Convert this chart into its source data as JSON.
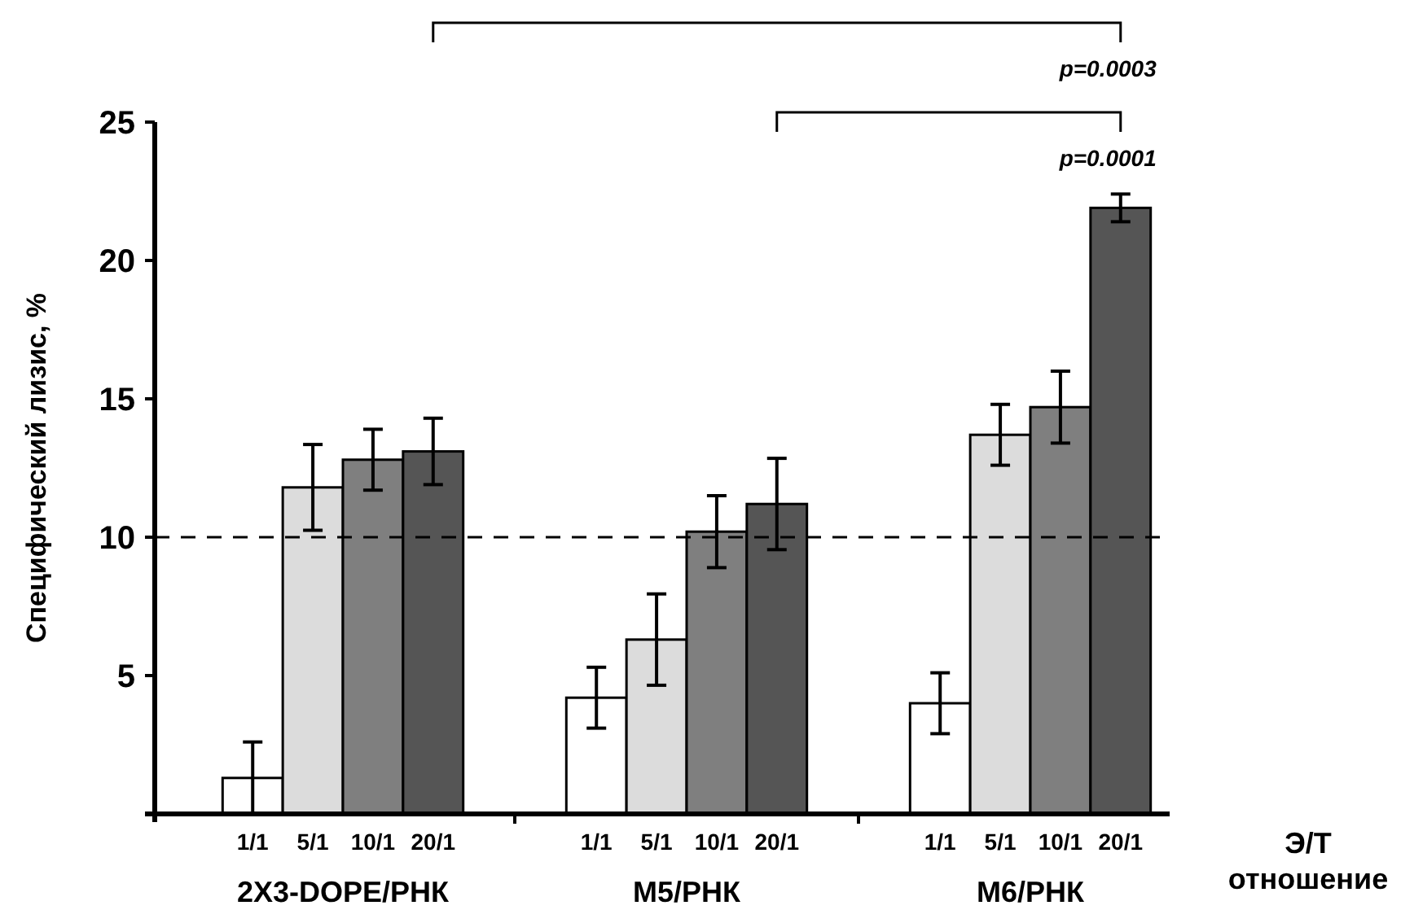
{
  "chart_data": {
    "type": "bar",
    "ylabel": "Специфический лизис, %",
    "xlabel": "Э/Т отношение",
    "categories": [
      "2X3-DOPE/РНК",
      "M5/РНК",
      "M6/РНК"
    ],
    "series": [
      {
        "name": "1/1",
        "color": "#ffffff",
        "values": [
          1.3,
          4.2,
          4.0
        ],
        "errors": [
          1.3,
          1.1,
          1.1
        ]
      },
      {
        "name": "5/1",
        "color": "#dcdcdc",
        "values": [
          11.8,
          6.3,
          13.7
        ],
        "errors": [
          1.55,
          1.65,
          1.1
        ]
      },
      {
        "name": "10/1",
        "color": "#7f7f7f",
        "values": [
          12.8,
          10.2,
          14.7
        ],
        "errors": [
          1.1,
          1.3,
          1.3
        ]
      },
      {
        "name": "20/1",
        "color": "#555555",
        "values": [
          13.1,
          11.2,
          21.9
        ],
        "errors": [
          1.2,
          1.65,
          0.5
        ]
      }
    ],
    "ylim": [
      0,
      25
    ],
    "yticks": [
      5,
      10,
      15,
      20,
      25
    ],
    "grid": false,
    "ref_lines": [
      {
        "axis": "y",
        "value": 10,
        "line_style": "dashed",
        "color": "#000000"
      }
    ],
    "annotations": [
      "p=0.0003",
      "p=0.0001"
    ]
  }
}
